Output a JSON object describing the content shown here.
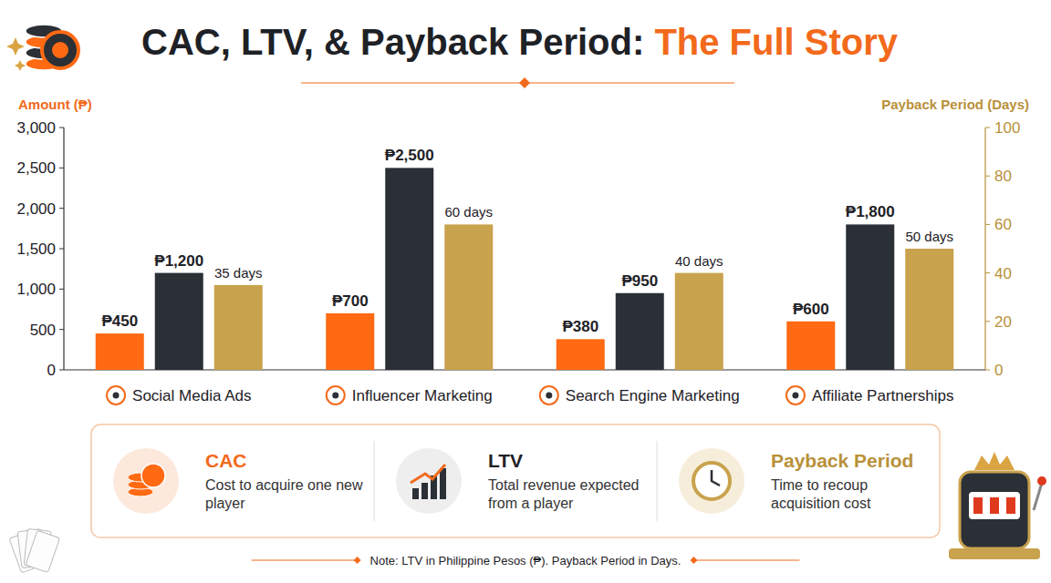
{
  "chart_data": {
    "type": "bar",
    "title": "CAC, LTV, & Payback Period: The Full Story",
    "y_label": "Amount (₱)",
    "y2_label": "Payback Period (Days)",
    "categories": [
      "Social Media Ads",
      "Influencer Marketing",
      "Search Engine Marketing",
      "Affiliate Partnerships"
    ],
    "ylim": [
      0,
      3000
    ],
    "yticks": [
      0,
      500,
      {
        "value": 1000,
        "label": "1,000"
      },
      {
        "value": 1500,
        "label": "1,500"
      },
      {
        "value": 2000,
        "label": "2,000"
      },
      {
        "value": 2500,
        "label": "2,500"
      },
      {
        "value": 3000,
        "label": "3,000"
      }
    ],
    "y2lim": [
      0,
      100
    ],
    "y2ticks": [
      0,
      20,
      40,
      60,
      80,
      100
    ],
    "grid": false,
    "data_labels": true,
    "legend": "bottom",
    "series": [
      {
        "name": "CAC",
        "description": "Cost to acquire one new player",
        "color": "#ff6a13",
        "values": [
          450,
          700,
          380,
          600
        ],
        "value_labels": [
          "₱450",
          "₱700",
          "₱380",
          "₱600"
        ]
      },
      {
        "name": "LTV",
        "description": "Total revenue expected from a player",
        "color": "#2b2f36",
        "values": [
          1200,
          2500,
          950,
          1800
        ],
        "value_labels": [
          "₱1,200",
          "₱2,500",
          "₱950",
          "₱1,800"
        ]
      },
      {
        "name": "Payback Period",
        "description": "Time to recoup acquisition cost",
        "color": "#c9a24d",
        "axis": "y2",
        "values": [
          35,
          60,
          40,
          50
        ],
        "value_labels": [
          "35 days",
          "60 days",
          "40 days",
          "50 days"
        ]
      }
    ],
    "note": "Note: LTV in Philippine Pesos (₱). Payback Period in Days."
  }
}
